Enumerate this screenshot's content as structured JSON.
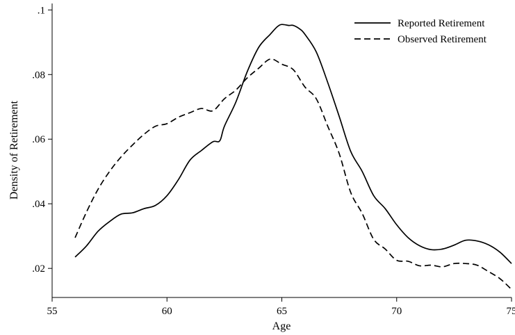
{
  "chart_data": {
    "type": "line",
    "title": "",
    "xlabel": "Age",
    "ylabel": "Density of Retirement",
    "xlim": [
      55,
      75
    ],
    "ylim": [
      0.011,
      0.102
    ],
    "xticks": [
      55,
      60,
      65,
      70,
      75
    ],
    "xtick_labels": [
      "55",
      "60",
      "65",
      "70",
      "75"
    ],
    "yticks": [
      0.02,
      0.04,
      0.06,
      0.08,
      0.1
    ],
    "ytick_labels": [
      ".02",
      ".04",
      ".06",
      ".08",
      ".1"
    ],
    "grid": false,
    "legend": {
      "position": "top-right"
    },
    "series": [
      {
        "name": "Reported Retirement",
        "style": "solid",
        "color": "#000000",
        "x": [
          56.0,
          56.5,
          57.0,
          57.5,
          58.0,
          58.5,
          59.0,
          59.5,
          60.0,
          60.5,
          61.0,
          61.5,
          62.0,
          62.3,
          62.5,
          63.0,
          63.5,
          64.0,
          64.5,
          64.8,
          65.0,
          65.3,
          65.5,
          65.8,
          66.0,
          66.5,
          67.0,
          67.5,
          68.0,
          68.5,
          69.0,
          69.5,
          70.0,
          70.5,
          71.0,
          71.5,
          72.0,
          72.5,
          73.0,
          73.5,
          74.0,
          74.5,
          75.0
        ],
        "y": [
          0.0235,
          0.027,
          0.0315,
          0.0345,
          0.0368,
          0.0372,
          0.0385,
          0.0395,
          0.0425,
          0.0475,
          0.0535,
          0.0565,
          0.0592,
          0.0595,
          0.064,
          0.0715,
          0.081,
          0.0885,
          0.0925,
          0.0948,
          0.0955,
          0.0952,
          0.0952,
          0.094,
          0.0925,
          0.087,
          0.0775,
          0.067,
          0.0562,
          0.05,
          0.0425,
          0.0385,
          0.0335,
          0.0295,
          0.027,
          0.0258,
          0.026,
          0.0272,
          0.0287,
          0.0285,
          0.0273,
          0.025,
          0.0215
        ]
      },
      {
        "name": "Observed Retirement",
        "style": "dashed",
        "color": "#000000",
        "x": [
          56.0,
          56.5,
          57.0,
          57.5,
          58.0,
          58.5,
          59.0,
          59.5,
          60.0,
          60.5,
          61.0,
          61.5,
          62.0,
          62.5,
          63.0,
          63.5,
          64.0,
          64.5,
          65.0,
          65.5,
          66.0,
          66.5,
          67.0,
          67.5,
          68.0,
          68.5,
          69.0,
          69.5,
          70.0,
          70.5,
          71.0,
          71.5,
          72.0,
          72.5,
          73.0,
          73.5,
          74.0,
          74.5,
          75.0
        ],
        "y": [
          0.0295,
          0.0375,
          0.0445,
          0.05,
          0.0545,
          0.0582,
          0.0615,
          0.064,
          0.0648,
          0.0668,
          0.0682,
          0.0695,
          0.0688,
          0.0725,
          0.0752,
          0.079,
          0.082,
          0.0848,
          0.0832,
          0.0815,
          0.0762,
          0.0725,
          0.064,
          0.0555,
          0.0435,
          0.037,
          0.029,
          0.026,
          0.0225,
          0.0222,
          0.0208,
          0.021,
          0.0205,
          0.0215,
          0.0215,
          0.021,
          0.019,
          0.0168,
          0.0135
        ]
      }
    ]
  }
}
